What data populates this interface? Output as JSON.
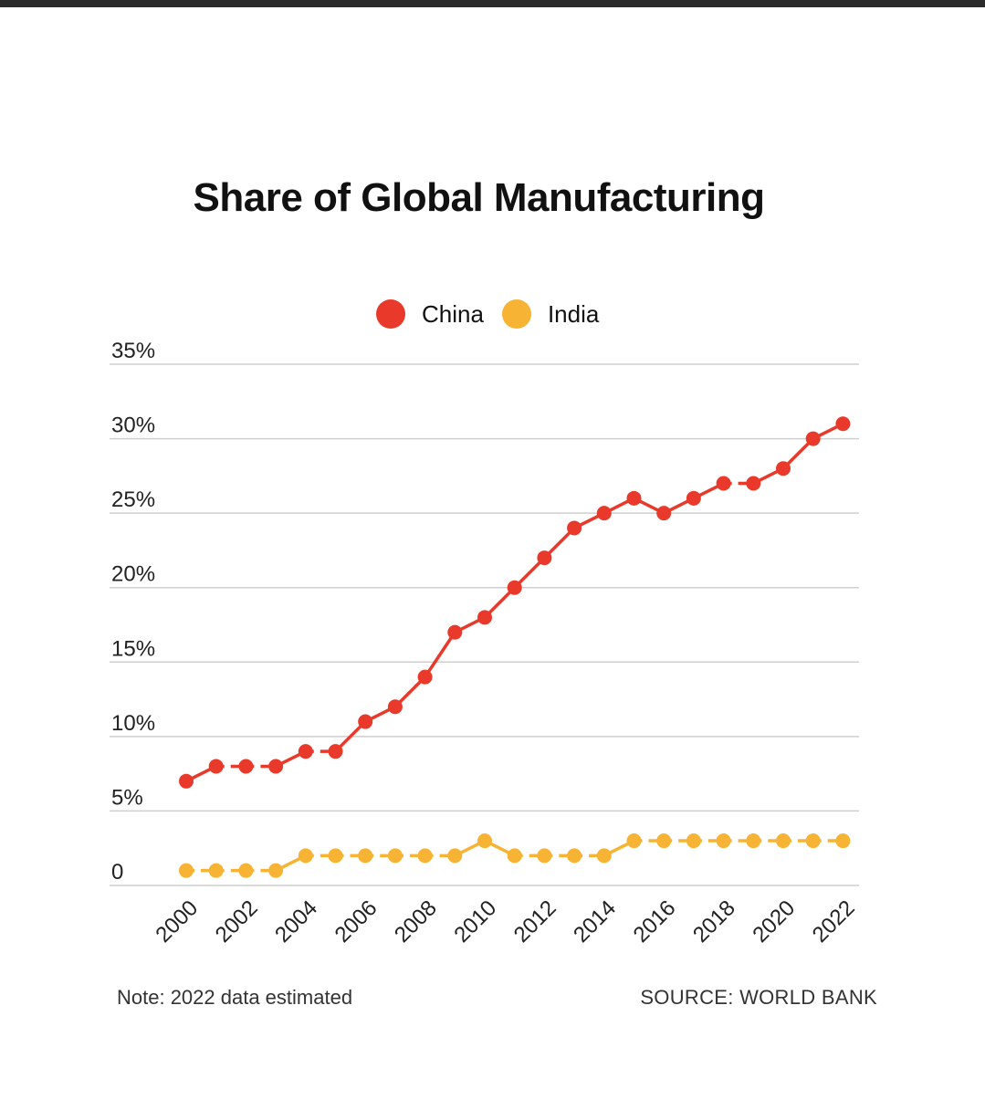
{
  "chart_data": {
    "type": "line",
    "title": "Share of Global Manufacturing",
    "x": [
      2000,
      2001,
      2002,
      2003,
      2004,
      2005,
      2006,
      2007,
      2008,
      2009,
      2010,
      2011,
      2012,
      2013,
      2014,
      2015,
      2016,
      2017,
      2018,
      2019,
      2020,
      2021,
      2022
    ],
    "x_tick_labels": [
      "2000",
      "2002",
      "2004",
      "2006",
      "2008",
      "2010",
      "2012",
      "2014",
      "2016",
      "2018",
      "2020",
      "2022"
    ],
    "y_tick_labels": [
      "0",
      "5%",
      "10%",
      "15%",
      "20%",
      "25%",
      "30%",
      "35%"
    ],
    "ylim": [
      0,
      35
    ],
    "grid": true,
    "legend_position": "top-center",
    "series": [
      {
        "name": "China",
        "color": "#e8392b",
        "values": [
          7,
          8,
          8,
          8,
          9,
          9,
          11,
          12,
          14,
          17,
          18,
          20,
          22,
          24,
          25,
          26,
          25,
          26,
          27,
          27,
          28,
          30,
          31
        ]
      },
      {
        "name": "India",
        "color": "#f7b334",
        "values": [
          1,
          1,
          1,
          1,
          2,
          2,
          2,
          2,
          2,
          2,
          3,
          2,
          2,
          2,
          2,
          3,
          3,
          3,
          3,
          3,
          3,
          3,
          3
        ]
      }
    ],
    "note": "Note: 2022 data estimated",
    "source": "SOURCE: WORLD BANK"
  }
}
